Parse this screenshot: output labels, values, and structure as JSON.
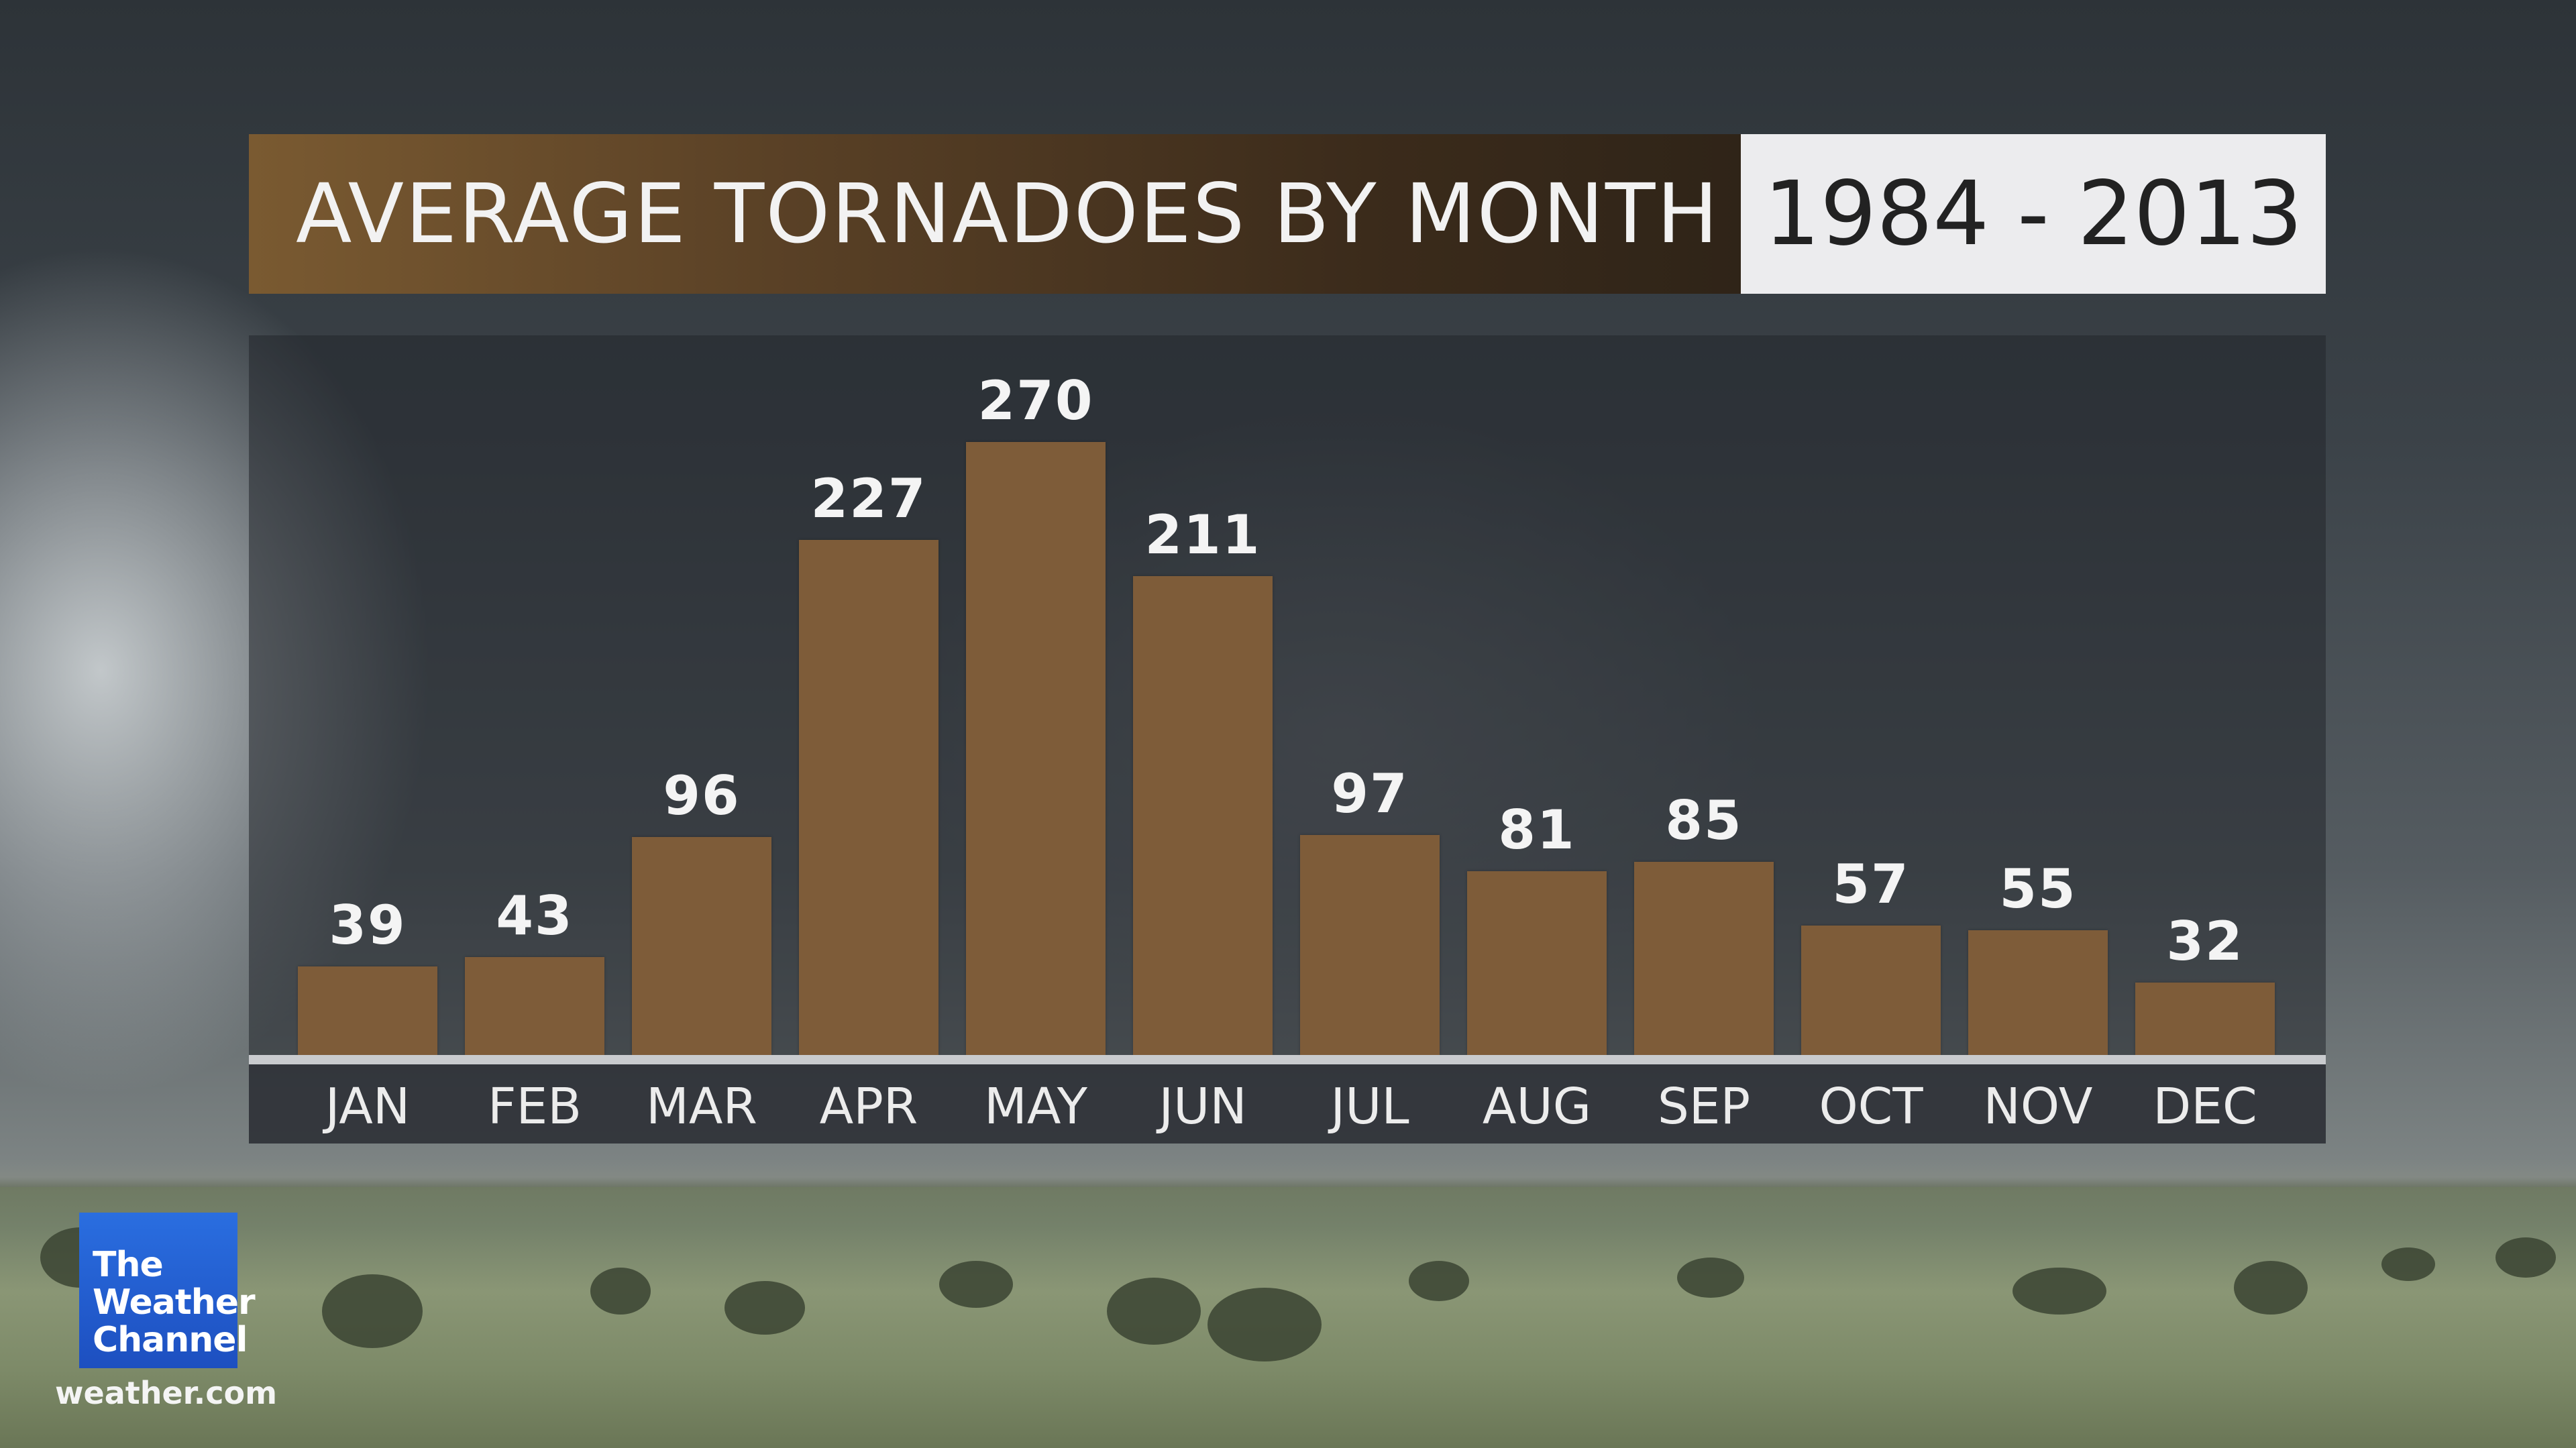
{
  "header": {
    "title": "AVERAGE TORNADOES BY MONTH",
    "years": "1984 - 2013"
  },
  "chart_data": {
    "type": "bar",
    "title": "AVERAGE TORNADOES BY MONTH",
    "subtitle": "1984 - 2013",
    "categories": [
      "JAN",
      "FEB",
      "MAR",
      "APR",
      "MAY",
      "JUN",
      "JUL",
      "AUG",
      "SEP",
      "OCT",
      "NOV",
      "DEC"
    ],
    "values": [
      39,
      43,
      96,
      227,
      270,
      211,
      97,
      81,
      85,
      57,
      55,
      32
    ],
    "value_labels": [
      "39",
      "43",
      "96",
      "227",
      "270",
      "211",
      "97",
      "81",
      "85",
      "57",
      "55",
      "32"
    ],
    "xlabel": "",
    "ylabel": "",
    "ylim": [
      0,
      300
    ],
    "grid": false,
    "bar_color": "#7e5c39"
  },
  "branding": {
    "logo_lines": [
      "The",
      "Weather",
      "Channel"
    ],
    "website": "weather.com",
    "logo_color": "#1d4fc0"
  }
}
